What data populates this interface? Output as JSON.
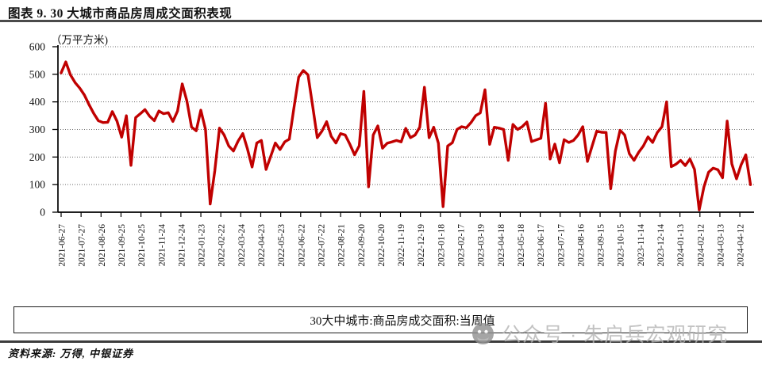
{
  "page": {
    "title": "图表 9. 30 大城市商品房周成交面积表现",
    "source_note": "资料来源: 万得, 中银证券",
    "watermark": {
      "icon": "wechat-ghost-icon",
      "text": "公众号 · 朱启兵宏观研究"
    }
  },
  "colors": {
    "line": "#C00000",
    "axis": "#000000",
    "gridline": "#6b6b6b",
    "rule": "#3c3c3c",
    "watermark_text": "#b4b4b4",
    "watermark_icon": "#8f8f8f"
  },
  "chart_data": {
    "type": "line",
    "title": "大城市商品房周成交面积表现",
    "unit_label": "（万平方米)",
    "xlabel": "",
    "ylabel": "",
    "ylim": [
      0,
      600
    ],
    "yticks": [
      600,
      500,
      400,
      300,
      200,
      100,
      0
    ],
    "grid": "horizontal-dotted",
    "legend": {
      "position": "bottom-boxed",
      "entries": [
        {
          "label": "30大中城市:商品房成交面积:当周值",
          "color": "#C00000"
        }
      ]
    },
    "xticks": [
      "2021-06-27",
      "2021-07-27",
      "2021-08-26",
      "2021-09-25",
      "2021-10-25",
      "2021-11-24",
      "2021-12-24",
      "2022-01-23",
      "2022-02-22",
      "2022-03-24",
      "2022-04-23",
      "2022-05-23",
      "2022-06-22",
      "2022-07-22",
      "2022-08-21",
      "2022-09-20",
      "2022-10-20",
      "2022-11-19",
      "2022-12-19",
      "2023-01-18",
      "2023-02-17",
      "2023-03-19",
      "2023-04-18",
      "2023-05-18",
      "2023-06-17",
      "2023-07-17",
      "2023-08-16",
      "2023-09-15",
      "2023-10-15",
      "2023-11-14",
      "2023-12-14",
      "2024-01-13",
      "2024-02-12",
      "2024-03-13",
      "2024-04-12"
    ],
    "series": [
      {
        "name": "30大中城市:商品房成交面积:当周值",
        "color": "#C00000",
        "x_start": "2021-06-27",
        "x_step_days": 7,
        "values": [
          505,
          545,
          498,
          470,
          450,
          425,
          390,
          358,
          332,
          325,
          326,
          365,
          330,
          272,
          350,
          170,
          343,
          357,
          372,
          348,
          332,
          367,
          357,
          361,
          329,
          367,
          465,
          404,
          309,
          295,
          370,
          300,
          30,
          150,
          305,
          280,
          240,
          222,
          258,
          285,
          230,
          164,
          251,
          260,
          155,
          203,
          251,
          227,
          255,
          265,
          380,
          490,
          514,
          498,
          385,
          270,
          294,
          328,
          275,
          251,
          285,
          280,
          246,
          208,
          241,
          438,
          92,
          280,
          313,
          232,
          250,
          255,
          260,
          255,
          304,
          270,
          280,
          308,
          453,
          270,
          308,
          250,
          20,
          240,
          252,
          300,
          310,
          306,
          325,
          350,
          360,
          444,
          246,
          308,
          305,
          300,
          188,
          318,
          300,
          310,
          327,
          256,
          262,
          268,
          395,
          193,
          247,
          179,
          263,
          253,
          260,
          280,
          310,
          184,
          240,
          294,
          290,
          289,
          85,
          222,
          297,
          280,
          212,
          188,
          217,
          240,
          273,
          253,
          289,
          310,
          400,
          165,
          174,
          188,
          169,
          193,
          155,
          8,
          91,
          145,
          160,
          154,
          125,
          330,
          175,
          121,
          172,
          208,
          100
        ]
      }
    ]
  }
}
